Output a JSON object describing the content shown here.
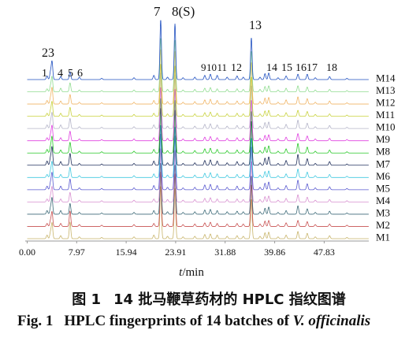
{
  "chart_data": {
    "type": "line",
    "xlabel": {
      "italic": "t",
      "rest": "/min"
    },
    "ylabel": "",
    "x_ticks": [
      "0.00",
      "7.97",
      "15.94",
      "23.91",
      "31.88",
      "39.86",
      "47.83"
    ],
    "xlim": [
      0,
      55
    ],
    "grid": false,
    "legend": "right",
    "series": [
      {
        "name": "M1",
        "color": "#c8b46a"
      },
      {
        "name": "M2",
        "color": "#c85050"
      },
      {
        "name": "M3",
        "color": "#3c6a78"
      },
      {
        "name": "M4",
        "color": "#d890d0"
      },
      {
        "name": "M5",
        "color": "#5a5ad0"
      },
      {
        "name": "M6",
        "color": "#40c8e0"
      },
      {
        "name": "M7",
        "color": "#1e2e5a"
      },
      {
        "name": "M8",
        "color": "#28c828"
      },
      {
        "name": "M9",
        "color": "#e040e0"
      },
      {
        "name": "M10",
        "color": "#b4b4c8"
      },
      {
        "name": "M11",
        "color": "#c8d23c"
      },
      {
        "name": "M12",
        "color": "#f0b464"
      },
      {
        "name": "M13",
        "color": "#90dc90"
      },
      {
        "name": "M14",
        "color": "#2050c0"
      }
    ],
    "peaks": [
      {
        "label": "1",
        "t": 3.2,
        "heights": [
          6,
          5,
          6,
          5,
          6,
          5,
          7,
          6,
          5,
          6,
          5,
          6,
          5,
          6
        ]
      },
      {
        "label": "2",
        "t": 3.75,
        "heights": [
          10,
          9,
          10,
          9,
          11,
          10,
          12,
          10,
          9,
          10,
          9,
          10,
          9,
          12
        ]
      },
      {
        "label": "3",
        "t": 4.0,
        "heights": [
          26,
          24,
          27,
          25,
          28,
          26,
          30,
          27,
          25,
          26,
          24,
          27,
          25,
          30
        ]
      },
      {
        "label": "4",
        "t": 5.4,
        "heights": [
          5,
          5,
          6,
          5,
          6,
          5,
          6,
          5,
          5,
          6,
          5,
          5,
          6,
          5
        ]
      },
      {
        "label": "5",
        "t": 6.9,
        "heights": [
          28,
          26,
          18,
          16,
          18,
          17,
          20,
          18,
          16,
          17,
          15,
          16,
          15,
          13
        ]
      },
      {
        "label": "6",
        "t": 8.4,
        "heights": [
          3,
          3,
          3,
          3,
          3,
          3,
          3,
          3,
          3,
          3,
          3,
          3,
          3,
          4
        ]
      },
      {
        "label": "7",
        "t": 21.5,
        "heights": [
          88,
          92,
          86,
          90,
          94,
          88,
          96,
          92,
          90,
          94,
          88,
          92,
          90,
          100
        ]
      },
      {
        "label": "8(S)",
        "t": 23.8,
        "heights": [
          84,
          88,
          82,
          86,
          90,
          84,
          92,
          88,
          86,
          90,
          84,
          88,
          86,
          93
        ]
      },
      {
        "label": "9",
        "t": 28.6,
        "heights": [
          7,
          6,
          7,
          6,
          8,
          7,
          8,
          7,
          6,
          7,
          6,
          7,
          6,
          7
        ]
      },
      {
        "label": "10",
        "t": 29.5,
        "heights": [
          8,
          7,
          8,
          7,
          9,
          8,
          9,
          8,
          7,
          8,
          7,
          8,
          7,
          9
        ]
      },
      {
        "label": "11",
        "t": 30.6,
        "heights": [
          6,
          5,
          6,
          5,
          7,
          6,
          7,
          6,
          5,
          6,
          5,
          6,
          5,
          7
        ]
      },
      {
        "label": "12",
        "t": 33.8,
        "heights": [
          5,
          5,
          5,
          5,
          6,
          5,
          6,
          5,
          5,
          5,
          5,
          5,
          5,
          6
        ]
      },
      {
        "label": "13",
        "t": 36.1,
        "heights": [
          66,
          70,
          64,
          68,
          72,
          66,
          74,
          70,
          68,
          72,
          66,
          70,
          68,
          70
        ]
      },
      {
        "label": "14",
        "t": 38.3,
        "heights": [
          10,
          9,
          10,
          9,
          11,
          10,
          12,
          10,
          9,
          10,
          9,
          10,
          9,
          10
        ]
      },
      {
        "label": "15",
        "t": 41.7,
        "heights": [
          6,
          6,
          6,
          6,
          7,
          6,
          8,
          7,
          6,
          7,
          6,
          7,
          6,
          6
        ]
      },
      {
        "label": "16",
        "t": 43.6,
        "heights": [
          12,
          10,
          14,
          12,
          16,
          14,
          18,
          16,
          12,
          14,
          10,
          12,
          10,
          9
        ]
      },
      {
        "label": "17",
        "t": 45.1,
        "heights": [
          9,
          8,
          9,
          8,
          10,
          9,
          11,
          10,
          8,
          9,
          8,
          9,
          8,
          9
        ]
      },
      {
        "label": "18",
        "t": 48.7,
        "heights": [
          5,
          4,
          5,
          4,
          5,
          5,
          6,
          5,
          4,
          5,
          4,
          5,
          4,
          5
        ]
      }
    ],
    "minor_peaks": [
      {
        "t": 12.0,
        "heights": [
          2,
          2,
          2,
          2,
          2,
          2,
          2,
          2,
          2,
          2,
          2,
          2,
          2,
          2
        ]
      },
      {
        "t": 17.2,
        "heights": [
          3,
          3,
          3,
          3,
          3,
          3,
          3,
          3,
          3,
          3,
          3,
          3,
          3,
          3
        ]
      },
      {
        "t": 20.4,
        "heights": [
          6,
          5,
          6,
          5,
          7,
          6,
          7,
          6,
          5,
          6,
          5,
          6,
          5,
          7
        ]
      },
      {
        "t": 22.6,
        "heights": [
          4,
          4,
          4,
          4,
          4,
          4,
          4,
          4,
          4,
          4,
          4,
          4,
          4,
          4
        ]
      },
      {
        "t": 25.1,
        "heights": [
          3,
          3,
          3,
          3,
          3,
          3,
          3,
          3,
          3,
          3,
          3,
          3,
          3,
          3
        ]
      },
      {
        "t": 27.0,
        "heights": [
          4,
          4,
          4,
          4,
          4,
          4,
          4,
          4,
          4,
          4,
          4,
          4,
          4,
          4
        ]
      },
      {
        "t": 32.2,
        "heights": [
          4,
          4,
          4,
          4,
          4,
          4,
          4,
          4,
          4,
          4,
          4,
          4,
          4,
          4
        ]
      },
      {
        "t": 34.8,
        "heights": [
          4,
          4,
          4,
          4,
          4,
          4,
          4,
          4,
          4,
          4,
          4,
          4,
          4,
          4
        ]
      },
      {
        "t": 37.5,
        "heights": [
          4,
          4,
          4,
          4,
          4,
          4,
          4,
          4,
          4,
          4,
          4,
          4,
          4,
          4
        ]
      },
      {
        "t": 38.9,
        "heights": [
          11,
          10,
          12,
          10,
          13,
          11,
          14,
          12,
          10,
          11,
          10,
          11,
          10,
          11
        ]
      },
      {
        "t": 40.4,
        "heights": [
          3,
          3,
          3,
          3,
          3,
          3,
          3,
          3,
          3,
          3,
          3,
          3,
          3,
          3
        ]
      },
      {
        "t": 46.4,
        "heights": [
          3,
          3,
          3,
          3,
          3,
          3,
          3,
          3,
          3,
          3,
          3,
          3,
          3,
          3
        ]
      },
      {
        "t": 51.5,
        "heights": [
          2,
          2,
          2,
          2,
          2,
          2,
          2,
          2,
          2,
          2,
          2,
          2,
          2,
          2
        ]
      }
    ]
  },
  "caption": {
    "zh": {
      "label": "图 1",
      "text": "14 批马鞭草药材的 HPLC 指纹图谱"
    },
    "en": {
      "label": "Fig. 1",
      "text": "HPLC fingerprints of 14 batches of",
      "species": "V. officinalis"
    }
  }
}
